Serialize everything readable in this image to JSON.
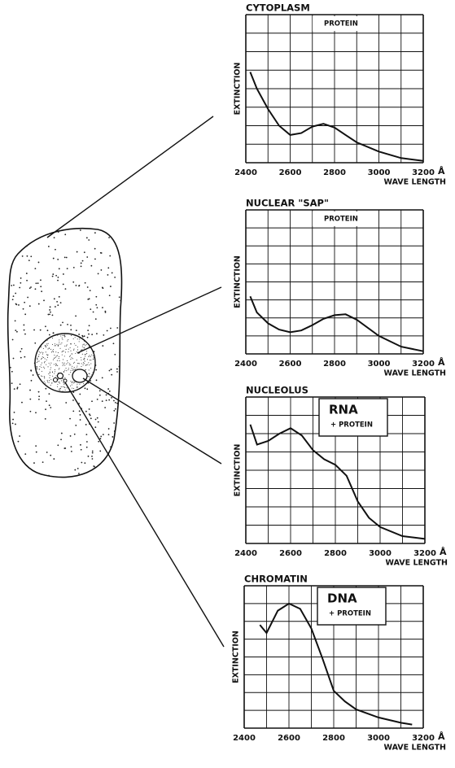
{
  "chart_data": [
    {
      "type": "line",
      "title": "CYTOPLASM",
      "ylabel": "EXTINCTION",
      "xlabel": "WAVE LENGTH",
      "x_unit": "Å",
      "annotations": [
        "PROTEIN"
      ],
      "xlim": [
        2400,
        3200
      ],
      "xticks": [
        2400,
        2600,
        2800,
        3000,
        3200
      ],
      "xgrid": [
        2400,
        2500,
        2600,
        2700,
        2800,
        2900,
        3000,
        3100,
        3200
      ],
      "ylim": [
        0,
        8
      ],
      "ygrid": [
        0,
        1,
        2,
        3,
        4,
        5,
        6,
        7,
        8
      ],
      "x": [
        2420,
        2450,
        2500,
        2550,
        2600,
        2650,
        2700,
        2750,
        2800,
        2850,
        2900,
        3000,
        3100,
        3200
      ],
      "values": [
        4.9,
        4.0,
        2.9,
        2.0,
        1.5,
        1.6,
        1.95,
        2.1,
        1.9,
        1.5,
        1.1,
        0.6,
        0.25,
        0.1
      ],
      "color": "#111111"
    },
    {
      "type": "line",
      "title": "NUCLEAR \"SAP\"",
      "ylabel": "EXTINCTION",
      "xlabel": "WAVE LENGTH",
      "x_unit": "Å",
      "annotations": [
        "PROTEIN"
      ],
      "xlim": [
        2400,
        3200
      ],
      "xticks": [
        2400,
        2600,
        2800,
        3000,
        3200
      ],
      "xgrid": [
        2400,
        2500,
        2600,
        2700,
        2800,
        2900,
        3000,
        3100,
        3200
      ],
      "ylim": [
        0,
        8
      ],
      "ygrid": [
        0,
        1,
        2,
        3,
        4,
        5,
        6,
        7,
        8
      ],
      "x": [
        2420,
        2450,
        2500,
        2550,
        2600,
        2650,
        2700,
        2750,
        2800,
        2850,
        2900,
        3000,
        3100,
        3200
      ],
      "values": [
        3.2,
        2.3,
        1.7,
        1.35,
        1.2,
        1.3,
        1.6,
        1.95,
        2.15,
        2.2,
        1.9,
        1.0,
        0.4,
        0.15
      ],
      "color": "#111111"
    },
    {
      "type": "line",
      "title": "NUCLEOLUS",
      "ylabel": "EXTINCTION",
      "xlabel": "WAVE LENGTH",
      "x_unit": "Å",
      "annotations": [
        "RNA",
        "+ PROTEIN"
      ],
      "xlim": [
        2400,
        3200
      ],
      "xticks": [
        2400,
        2600,
        2800,
        3000,
        3200
      ],
      "xgrid": [
        2400,
        2500,
        2600,
        2700,
        2800,
        2900,
        3000,
        3100,
        3200
      ],
      "ylim": [
        0,
        8
      ],
      "ygrid": [
        0,
        1,
        2,
        3,
        4,
        5,
        6,
        7,
        8
      ],
      "x": [
        2420,
        2450,
        2500,
        2550,
        2600,
        2650,
        2700,
        2750,
        2800,
        2850,
        2900,
        2950,
        3000,
        3100,
        3200
      ],
      "values": [
        6.5,
        5.4,
        5.6,
        6.0,
        6.3,
        5.9,
        5.1,
        4.6,
        4.3,
        3.7,
        2.3,
        1.4,
        0.9,
        0.4,
        0.25
      ],
      "color": "#111111"
    },
    {
      "type": "line",
      "title": "CHROMATIN",
      "ylabel": "EXTINCTION",
      "xlabel": "WAVE LENGTH",
      "x_unit": "Å",
      "annotations": [
        "DNA",
        "+ PROTEIN"
      ],
      "xlim": [
        2400,
        3200
      ],
      "xticks": [
        2400,
        2600,
        2800,
        3000,
        3200
      ],
      "xgrid": [
        2400,
        2500,
        2600,
        2700,
        2800,
        2900,
        3000,
        3100,
        3200
      ],
      "ylim": [
        0,
        8
      ],
      "ygrid": [
        0,
        1,
        2,
        3,
        4,
        5,
        6,
        7,
        8
      ],
      "x": [
        2470,
        2500,
        2550,
        2600,
        2650,
        2700,
        2750,
        2800,
        2850,
        2900,
        3000,
        3100,
        3150
      ],
      "values": [
        5.8,
        5.35,
        6.6,
        7.0,
        6.7,
        5.6,
        3.9,
        2.1,
        1.5,
        1.05,
        0.6,
        0.3,
        0.2
      ],
      "color": "#111111"
    }
  ]
}
